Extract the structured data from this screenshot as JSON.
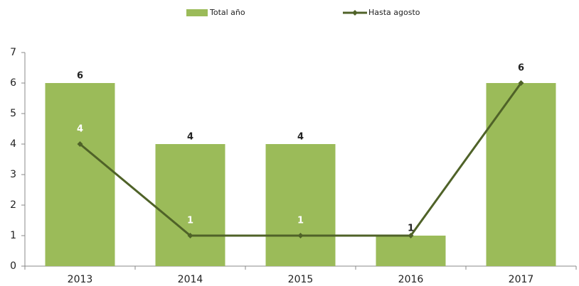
{
  "chart_data": {
    "type": "bar",
    "categories": [
      "2013",
      "2014",
      "2015",
      "2016",
      "2017"
    ],
    "series": [
      {
        "name": "Total año",
        "type": "bar",
        "color": "#9bbb59",
        "values": [
          6,
          4,
          4,
          1,
          6
        ],
        "value_labels": [
          "6",
          "4",
          "4",
          "1",
          null
        ]
      },
      {
        "name": "Hasta agosto",
        "type": "line",
        "color": "#4f6228",
        "values": [
          4,
          1,
          1,
          1,
          6
        ],
        "value_labels": [
          "4",
          "1",
          "1",
          null,
          "6"
        ]
      }
    ],
    "ylim": [
      0,
      7
    ],
    "yticks": [
      0,
      1,
      2,
      3,
      4,
      5,
      6,
      7
    ],
    "grid": false,
    "legend": "top"
  }
}
